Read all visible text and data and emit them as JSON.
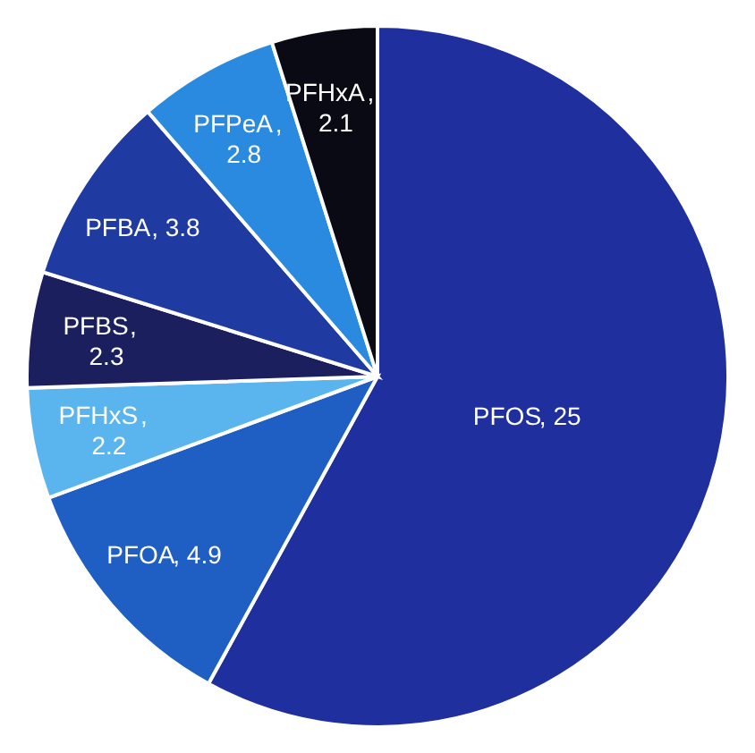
{
  "chart_data": {
    "type": "pie",
    "categories": [
      "PFOS",
      "PFOA",
      "PFHxS",
      "PFBS",
      "PFBA",
      "PFPeA",
      "PFHxA"
    ],
    "values": [
      25,
      4.9,
      2.2,
      2.3,
      3.8,
      2.8,
      2.1
    ],
    "value_labels": [
      ", 25",
      ", 4.9",
      ", 2.2",
      ", 2.3",
      ", 3.8",
      ", 2.8",
      ", 2.1"
    ],
    "colors": [
      "#1f2f9e",
      "#1f5fc4",
      "#5ab4ee",
      "#1c1f5e",
      "#1f3aa0",
      "#2a8ae0",
      "#0a0a14"
    ]
  }
}
